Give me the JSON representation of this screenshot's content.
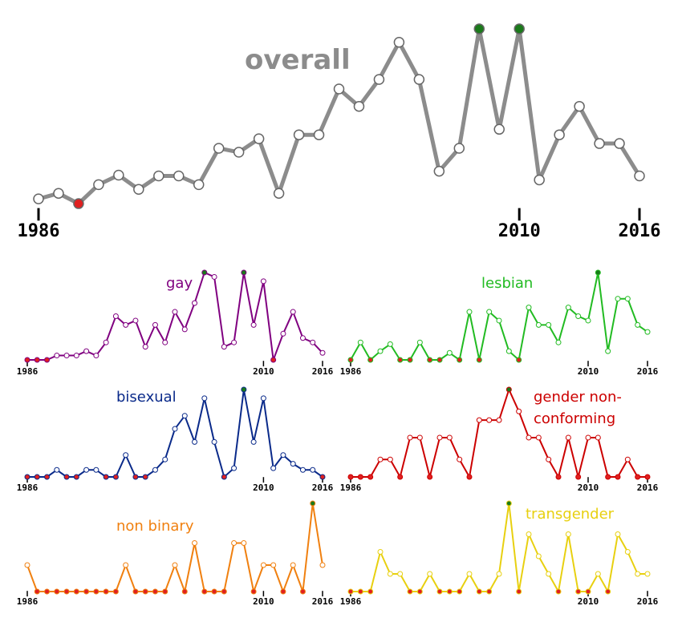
{
  "chart_data": [
    {
      "type": "line",
      "title": "overall",
      "color": "#8c8c8c",
      "x": [
        1986,
        1987,
        1988,
        1989,
        1990,
        1991,
        1992,
        1993,
        1994,
        1995,
        1996,
        1997,
        1998,
        1999,
        2000,
        2001,
        2002,
        2003,
        2004,
        2005,
        2006,
        2007,
        2008,
        2009,
        2010,
        2011,
        2012,
        2013,
        2014,
        2015,
        2016
      ],
      "values": [
        9,
        16,
        3,
        27,
        39,
        21,
        38,
        38,
        27,
        73,
        68,
        85,
        16,
        90,
        90,
        148,
        126,
        160,
        207,
        160,
        44,
        73,
        224,
        97,
        224,
        33,
        90,
        126,
        79,
        79,
        38
      ],
      "xlim": [
        1986,
        2016
      ],
      "ylim": [
        0,
        224
      ],
      "xticks": [
        1986,
        2010,
        2016
      ]
    },
    {
      "type": "line",
      "title": "gay",
      "color": "#800080",
      "x": [
        1986,
        1987,
        1988,
        1989,
        1990,
        1991,
        1992,
        1993,
        1994,
        1995,
        1996,
        1997,
        1998,
        1999,
        2000,
        2001,
        2002,
        2003,
        2004,
        2005,
        2006,
        2007,
        2008,
        2009,
        2010,
        2011,
        2012,
        2013,
        2014,
        2015,
        2016
      ],
      "values": [
        0,
        0,
        0,
        5,
        5,
        5,
        10,
        5,
        20,
        50,
        40,
        45,
        15,
        40,
        20,
        55,
        35,
        65,
        100,
        95,
        15,
        20,
        100,
        40,
        90,
        0,
        30,
        55,
        25,
        20,
        8
      ],
      "xlim": [
        1986,
        2016
      ],
      "ylim": [
        0,
        100
      ],
      "xticks": [
        1986,
        2010,
        2016
      ]
    },
    {
      "type": "line",
      "title": "lesbian",
      "color": "#22bb22",
      "x": [
        1986,
        1987,
        1988,
        1989,
        1990,
        1991,
        1992,
        1993,
        1994,
        1995,
        1996,
        1997,
        1998,
        1999,
        2000,
        2001,
        2002,
        2003,
        2004,
        2005,
        2006,
        2007,
        2008,
        2009,
        2010,
        2011,
        2012,
        2013,
        2014,
        2015,
        2016
      ],
      "values": [
        0,
        20,
        0,
        10,
        18,
        0,
        0,
        20,
        0,
        0,
        8,
        0,
        55,
        0,
        55,
        45,
        10,
        0,
        60,
        40,
        40,
        20,
        60,
        50,
        45,
        100,
        10,
        70,
        70,
        40,
        32
      ],
      "xlim": [
        1986,
        2016
      ],
      "ylim": [
        0,
        100
      ],
      "xticks": [
        1986,
        2010,
        2016
      ]
    },
    {
      "type": "line",
      "title": "bisexual",
      "color": "#0a2a8a",
      "x": [
        1986,
        1987,
        1988,
        1989,
        1990,
        1991,
        1992,
        1993,
        1994,
        1995,
        1996,
        1997,
        1998,
        1999,
        2000,
        2001,
        2002,
        2003,
        2004,
        2005,
        2006,
        2007,
        2008,
        2009,
        2010,
        2011,
        2012,
        2013,
        2014,
        2015,
        2016
      ],
      "values": [
        0,
        0,
        0,
        8,
        0,
        0,
        8,
        8,
        0,
        0,
        25,
        0,
        0,
        8,
        20,
        55,
        70,
        40,
        90,
        40,
        0,
        10,
        100,
        40,
        90,
        10,
        25,
        15,
        8,
        8,
        0
      ],
      "xlim": [
        1986,
        2016
      ],
      "ylim": [
        0,
        100
      ],
      "xticks": [
        1986,
        2010,
        2016
      ]
    },
    {
      "type": "line",
      "title": "gender non-conforming",
      "color": "#cc0000",
      "x": [
        1986,
        1987,
        1988,
        1989,
        1990,
        1991,
        1992,
        1993,
        1994,
        1995,
        1996,
        1997,
        1998,
        1999,
        2000,
        2001,
        2002,
        2003,
        2004,
        2005,
        2006,
        2007,
        2008,
        2009,
        2010,
        2011,
        2012,
        2013,
        2014,
        2015,
        2016
      ],
      "values": [
        0,
        0,
        0,
        20,
        20,
        0,
        45,
        45,
        0,
        45,
        45,
        20,
        0,
        65,
        65,
        65,
        100,
        75,
        45,
        45,
        20,
        0,
        45,
        0,
        45,
        45,
        0,
        0,
        20,
        0,
        0
      ],
      "xlim": [
        1986,
        2016
      ],
      "ylim": [
        0,
        100
      ],
      "xticks": [
        1986,
        2010,
        2016
      ]
    },
    {
      "type": "line",
      "title": "non binary",
      "color": "#f08010",
      "x": [
        1986,
        1987,
        1988,
        1989,
        1990,
        1991,
        1992,
        1993,
        1994,
        1995,
        1996,
        1997,
        1998,
        1999,
        2000,
        2001,
        2002,
        2003,
        2004,
        2005,
        2006,
        2007,
        2008,
        2009,
        2010,
        2011,
        2012,
        2013,
        2014,
        2015,
        2016
      ],
      "values": [
        30,
        0,
        0,
        0,
        0,
        0,
        0,
        0,
        0,
        0,
        30,
        0,
        0,
        0,
        0,
        30,
        0,
        55,
        0,
        0,
        0,
        55,
        55,
        0,
        30,
        30,
        0,
        30,
        0,
        100,
        30
      ],
      "xlim": [
        1986,
        2016
      ],
      "ylim": [
        0,
        100
      ],
      "xticks": [
        1986,
        2010,
        2016
      ]
    },
    {
      "type": "line",
      "title": "transgender",
      "color": "#e8d010",
      "x": [
        1986,
        1987,
        1988,
        1989,
        1990,
        1991,
        1992,
        1993,
        1994,
        1995,
        1996,
        1997,
        1998,
        1999,
        2000,
        2001,
        2002,
        2003,
        2004,
        2005,
        2006,
        2007,
        2008,
        2009,
        2010,
        2011,
        2012,
        2013,
        2014,
        2015,
        2016
      ],
      "values": [
        0,
        0,
        0,
        45,
        20,
        20,
        0,
        0,
        20,
        0,
        0,
        0,
        20,
        0,
        0,
        20,
        100,
        0,
        65,
        40,
        20,
        0,
        65,
        0,
        0,
        20,
        0,
        65,
        45,
        20,
        20
      ],
      "xlim": [
        1986,
        2016
      ],
      "ylim": [
        0,
        100
      ],
      "xticks": [
        1986,
        2010,
        2016
      ]
    }
  ]
}
